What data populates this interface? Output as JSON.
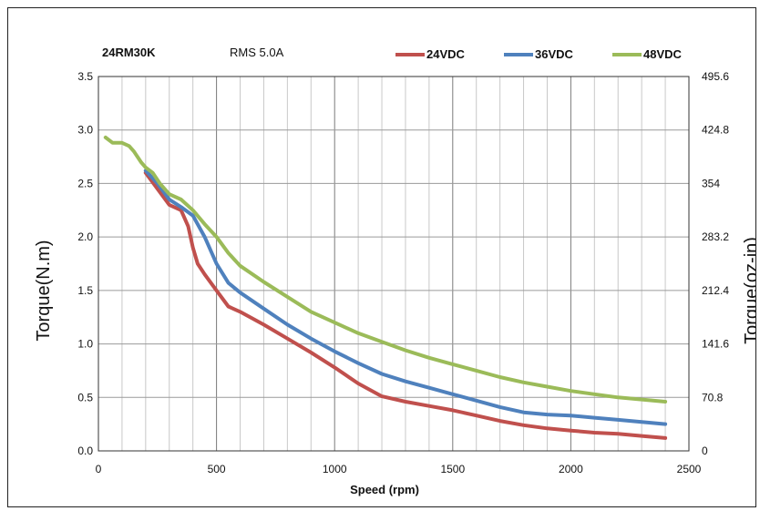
{
  "chart_data": {
    "type": "line",
    "title": "24RM30K",
    "subtitle": "RMS 5.0A",
    "xlabel": "Speed (rpm)",
    "ylabel": "Torque(N.m)",
    "y2label": "Torque(oz-in)",
    "xlim": [
      0,
      2500
    ],
    "ylim": [
      0,
      3.5
    ],
    "x_ticks": [
      "0",
      "500",
      "1000",
      "1500",
      "2000",
      "2500"
    ],
    "y_ticks": [
      "0.0",
      "0.5",
      "1.0",
      "1.5",
      "2.0",
      "2.5",
      "3.0",
      "3.5"
    ],
    "y2_ticks": [
      "0",
      "70.8",
      "141.6",
      "212.4",
      "283.2",
      "354",
      "424.8",
      "495.6"
    ],
    "grid": true,
    "legend_position": "top-right",
    "series": [
      {
        "name": "24VDC",
        "color": "#c0504d",
        "x": [
          200,
          250,
          300,
          350,
          380,
          400,
          420,
          450,
          500,
          550,
          600,
          700,
          800,
          900,
          1000,
          1100,
          1200,
          1300,
          1400,
          1500,
          1600,
          1700,
          1800,
          1900,
          2000,
          2100,
          2200,
          2300,
          2400
        ],
        "y": [
          2.6,
          2.45,
          2.3,
          2.25,
          2.1,
          1.9,
          1.75,
          1.65,
          1.5,
          1.35,
          1.3,
          1.18,
          1.05,
          0.92,
          0.78,
          0.63,
          0.51,
          0.46,
          0.42,
          0.38,
          0.33,
          0.28,
          0.24,
          0.21,
          0.19,
          0.17,
          0.16,
          0.14,
          0.12
        ]
      },
      {
        "name": "36VDC",
        "color": "#4f81bd",
        "x": [
          200,
          250,
          300,
          350,
          400,
          450,
          500,
          550,
          600,
          700,
          800,
          900,
          1000,
          1100,
          1200,
          1300,
          1400,
          1500,
          1600,
          1700,
          1800,
          1900,
          2000,
          2100,
          2200,
          2300,
          2400
        ],
        "y": [
          2.62,
          2.5,
          2.35,
          2.28,
          2.2,
          2.0,
          1.75,
          1.57,
          1.48,
          1.33,
          1.18,
          1.05,
          0.93,
          0.82,
          0.72,
          0.65,
          0.59,
          0.53,
          0.47,
          0.41,
          0.36,
          0.34,
          0.33,
          0.31,
          0.29,
          0.27,
          0.25
        ]
      },
      {
        "name": "48VDC",
        "color": "#9bbb59",
        "x": [
          30,
          60,
          100,
          130,
          150,
          180,
          200,
          230,
          260,
          300,
          350,
          400,
          450,
          500,
          550,
          600,
          700,
          800,
          900,
          1000,
          1100,
          1200,
          1300,
          1400,
          1500,
          1600,
          1700,
          1800,
          1900,
          2000,
          2100,
          2200,
          2300,
          2400
        ],
        "y": [
          2.93,
          2.88,
          2.88,
          2.85,
          2.8,
          2.7,
          2.65,
          2.6,
          2.5,
          2.4,
          2.35,
          2.25,
          2.12,
          2.0,
          1.85,
          1.73,
          1.58,
          1.44,
          1.3,
          1.2,
          1.1,
          1.02,
          0.94,
          0.87,
          0.81,
          0.75,
          0.69,
          0.64,
          0.6,
          0.56,
          0.53,
          0.5,
          0.48,
          0.46
        ]
      }
    ]
  }
}
